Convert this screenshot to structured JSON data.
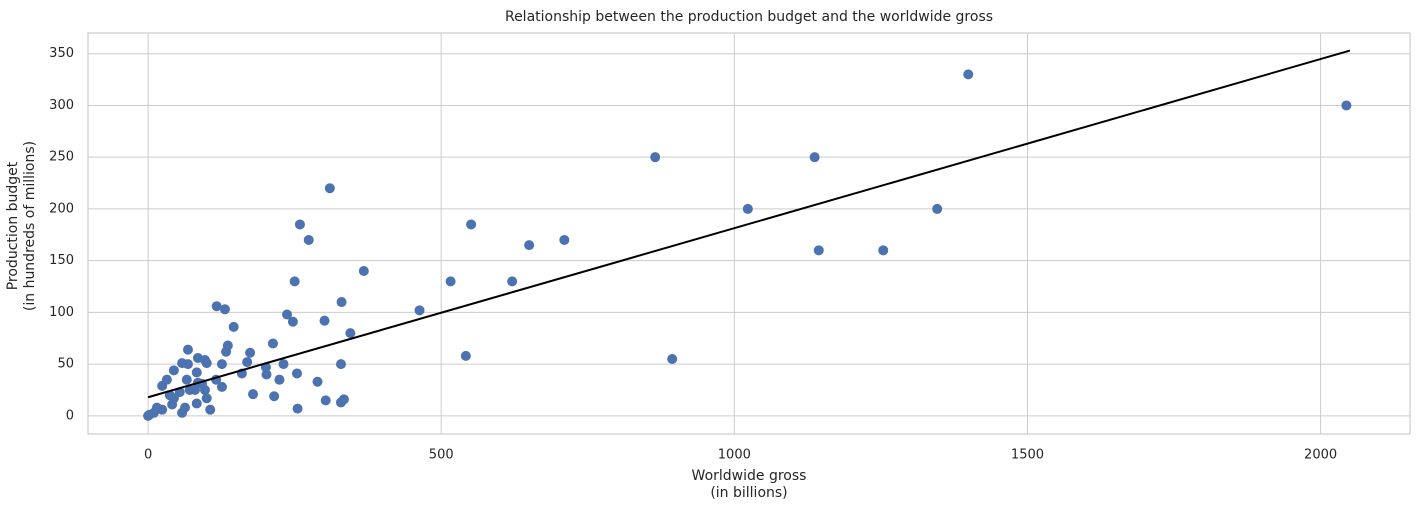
{
  "chart_data": {
    "type": "scatter",
    "title": "Relationship between the production budget and the worldwide gross",
    "xlabel": [
      "Worldwide gross",
      "(in billions)"
    ],
    "ylabel": [
      "Production budget",
      "(in hundreds of millions)"
    ],
    "xlim": [
      -102.5,
      2152.5
    ],
    "ylim": [
      -17.5,
      370
    ],
    "xticks": [
      0,
      500,
      1000,
      1500,
      2000
    ],
    "yticks": [
      0,
      50,
      100,
      150,
      200,
      250,
      300,
      350
    ],
    "grid": true,
    "series": [
      {
        "kind": "markers",
        "color": "#4c72b0",
        "x": [
          2044,
          1399,
          865,
          1137,
          1023,
          1346,
          1144,
          1254,
          894,
          259,
          551,
          310,
          274,
          250,
          368,
          650,
          710,
          516,
          621,
          463,
          542,
          330,
          345,
          301,
          237,
          247,
          213,
          117,
          131,
          146,
          136,
          133,
          174,
          169,
          160,
          231,
          224,
          254,
          201,
          202,
          179,
          215,
          255,
          289,
          303,
          329,
          329,
          334,
          126,
          126,
          116,
          106,
          85,
          97,
          100,
          68,
          68,
          58,
          44,
          32,
          24,
          15,
          2,
          10,
          24,
          44,
          54,
          71,
          85,
          92,
          100,
          83,
          63,
          58,
          41,
          37,
          66,
          80,
          97,
          83,
          0
        ],
        "values": [
          300,
          330,
          250,
          250,
          200,
          200,
          160,
          160,
          55,
          185,
          185,
          220,
          170,
          130,
          140,
          165,
          170,
          130,
          130,
          102,
          58,
          110,
          80,
          92,
          98,
          91,
          70,
          106,
          103,
          86,
          68,
          62,
          61,
          52,
          41,
          50,
          35,
          41,
          47,
          40,
          21,
          19,
          7,
          33,
          15,
          50,
          13,
          16,
          50,
          28,
          35,
          6,
          56,
          54,
          51,
          64,
          50,
          51,
          44,
          35,
          29,
          8,
          1,
          3,
          6,
          17,
          23,
          25,
          32,
          31,
          17,
          12,
          8,
          3,
          11,
          20,
          35,
          25,
          25,
          42,
          0
        ]
      },
      {
        "kind": "line",
        "color": "#000000",
        "x": [
          0,
          2050
        ],
        "values": [
          18,
          353
        ]
      }
    ]
  }
}
